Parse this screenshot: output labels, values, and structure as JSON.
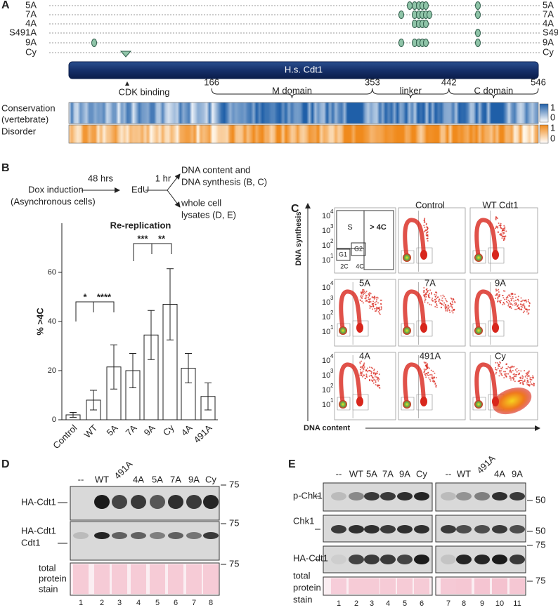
{
  "panel_labels": [
    "A",
    "B",
    "C",
    "D",
    "E"
  ],
  "panel_a": {
    "rows": [
      "5A",
      "7A",
      "4A",
      "S491A",
      "9A",
      "Cy"
    ],
    "protein": "H.s. Cdt1",
    "motif": "CDK binding",
    "domains": [
      {
        "start": 166,
        "name": "M domain"
      },
      {
        "start": 353,
        "name": "linker"
      },
      {
        "start": 442,
        "name": "C domain"
      }
    ],
    "end": 546,
    "tracks": [
      [
        "Conservation",
        "(vertebrate)"
      ],
      [
        "Disorder"
      ]
    ],
    "scale": [
      "1",
      "0"
    ]
  },
  "panel_b": {
    "start": [
      "Dox induction",
      "(Asynchronous cells)"
    ],
    "step1": "48 hrs",
    "middle": "EdU",
    "step2": "1 hr",
    "out1": [
      "DNA content and",
      "DNA synthesis (B, C)"
    ],
    "out2": [
      "whole cell",
      "lysates (D, E)"
    ]
  },
  "chart_data": {
    "type": "bar",
    "title": "Re-replication",
    "y_label": "% >4C",
    "categories": [
      "Control",
      "WT",
      "5A",
      "7A",
      "9A",
      "Cy",
      "4A",
      "491A"
    ],
    "values": [
      2,
      8,
      21.5,
      20,
      34.5,
      47,
      21,
      9.5
    ],
    "errors": [
      1,
      4,
      9,
      7,
      10,
      14.5,
      6,
      5.5
    ],
    "color": "#ffffff",
    "ylim": [
      0,
      80
    ],
    "yticks": [
      0,
      20,
      40,
      60
    ],
    "annotations": [
      "*",
      "****",
      "***",
      "**"
    ]
  },
  "panel_c": {
    "y_label": "DNA synthesis",
    "x_label": "DNA content",
    "tick_base": "10",
    "tick_exps": [
      "4",
      "3",
      "2",
      "1"
    ],
    "gates": [
      "S",
      "> 4C",
      "G1",
      "G2",
      "2C",
      "4C"
    ],
    "plots": [
      "Control",
      "WT Cdt1",
      "5A",
      "7A",
      "9A",
      "4A",
      "491A",
      "Cy"
    ]
  },
  "panel_d": {
    "lanes": [
      "--",
      "WT",
      "491A",
      "4A",
      "5A",
      "7A",
      "9A",
      "Cy"
    ],
    "rows": [
      [
        "HA-Cdt1"
      ],
      [
        "HA-Cdt1",
        "Cdt1"
      ],
      [
        "total",
        "protein",
        "stain"
      ]
    ],
    "marker": "75",
    "lane_numbers": [
      "1",
      "2",
      "3",
      "4",
      "5",
      "6",
      "7",
      "8"
    ]
  },
  "panel_e": {
    "lanes_left": [
      "--",
      "WT",
      "5A",
      "7A",
      "9A",
      "Cy"
    ],
    "lanes_right": [
      "--",
      "WT",
      "491A",
      "4A",
      "9A"
    ],
    "rows": [
      [
        "p-Chk1"
      ],
      [
        "Chk1"
      ],
      [
        "HA-Cdt1"
      ],
      [
        "total",
        "protein",
        "stain"
      ]
    ],
    "markers": [
      "50",
      "50",
      "75",
      "75"
    ],
    "lane_numbers": [
      "1",
      "2",
      "3",
      "4",
      "5",
      "6",
      "7",
      "8",
      "9",
      "10",
      "11"
    ]
  }
}
